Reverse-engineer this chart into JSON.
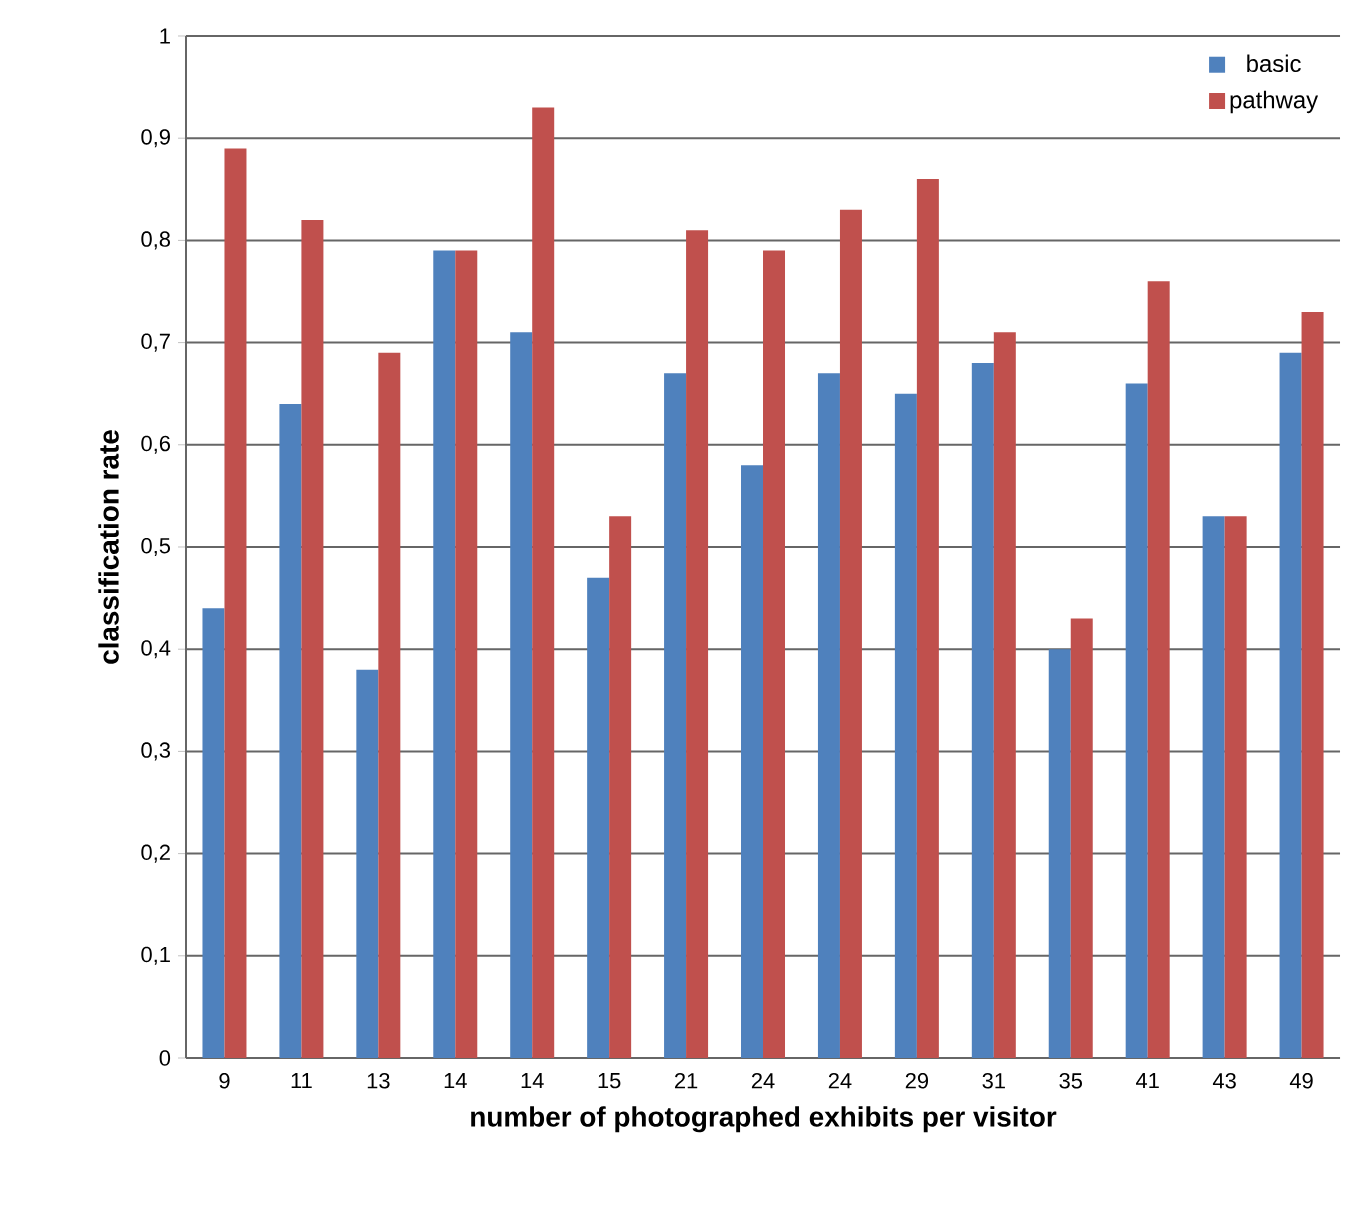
{
  "chart_data": {
    "type": "bar",
    "xlabel": "number of photographed exhibits per visitor",
    "ylabel": "classification rate",
    "categories": [
      "9",
      "11",
      "13",
      "14",
      "14",
      "15",
      "21",
      "24",
      "24",
      "29",
      "31",
      "35",
      "41",
      "43",
      "49"
    ],
    "series": [
      {
        "name": "basic",
        "color": "#4f81bd",
        "values": [
          0.44,
          0.64,
          0.38,
          0.79,
          0.71,
          0.47,
          0.67,
          0.58,
          0.67,
          0.65,
          0.68,
          0.4,
          0.66,
          0.53,
          0.69
        ]
      },
      {
        "name": "pathway",
        "color": "#c0504d",
        "values": [
          0.89,
          0.82,
          0.69,
          0.79,
          0.93,
          0.53,
          0.81,
          0.79,
          0.83,
          0.86,
          0.71,
          0.43,
          0.76,
          0.53,
          0.73
        ]
      }
    ],
    "ylim": [
      0,
      1
    ],
    "yticks": [
      {
        "value": 0,
        "label": "0"
      },
      {
        "value": 0.1,
        "label": "0,1"
      },
      {
        "value": 0.2,
        "label": "0,2"
      },
      {
        "value": 0.3,
        "label": "0,3"
      },
      {
        "value": 0.4,
        "label": "0,4"
      },
      {
        "value": 0.5,
        "label": "0,5"
      },
      {
        "value": 0.6,
        "label": "0,6"
      },
      {
        "value": 0.7,
        "label": "0,7"
      },
      {
        "value": 0.8,
        "label": "0,8"
      },
      {
        "value": 0.9,
        "label": "0,9"
      },
      {
        "value": 1,
        "label": "1"
      }
    ],
    "grid": "y",
    "legend": "top right"
  }
}
